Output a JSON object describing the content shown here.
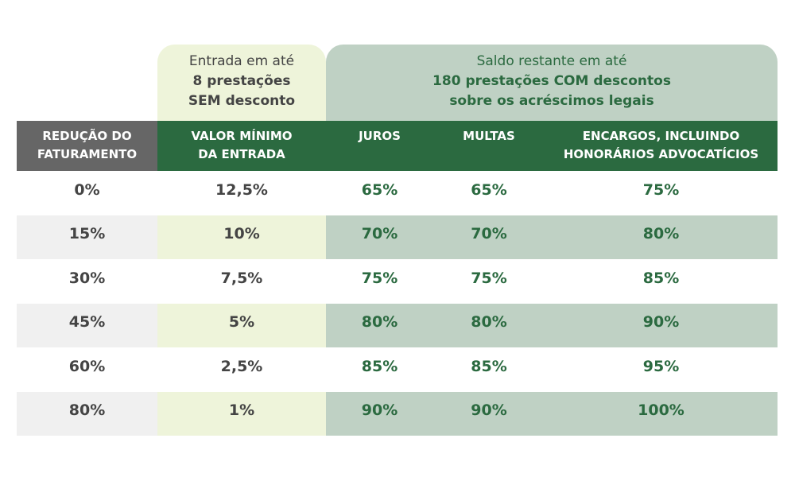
{
  "header_entrada": {
    "line1": "Entrada em até",
    "line2": "8 prestações",
    "line3": "SEM desconto"
  },
  "header_saldo": {
    "line1": "Saldo restante em até",
    "line2": "180 prestações COM descontos",
    "line3": "sobre os acréscimos legais"
  },
  "columns": [
    {
      "line1": "REDUÇÃO DO",
      "line2": "FATURAMENTO"
    },
    {
      "line1": "VALOR MÍNIMO",
      "line2": "DA ENTRADA"
    },
    {
      "line1": "JUROS",
      "line2": ""
    },
    {
      "line1": "MULTAS",
      "line2": ""
    },
    {
      "line1": "ENCARGOS, INCLUINDO",
      "line2": "HONORÁRIOS ADVOCATÍCIOS"
    }
  ],
  "rows": [
    [
      "0%",
      "12,5%",
      "65%",
      "65%",
      "75%"
    ],
    [
      "15%",
      "10%",
      "70%",
      "70%",
      "80%"
    ],
    [
      "30%",
      "7,5%",
      "75%",
      "75%",
      "85%"
    ],
    [
      "45%",
      "5%",
      "80%",
      "80%",
      "90%"
    ],
    [
      "60%",
      "2,5%",
      "85%",
      "85%",
      "95%"
    ],
    [
      "80%",
      "1%",
      "90%",
      "90%",
      "100%"
    ]
  ],
  "colors": {
    "dark_green": "#2b6a40",
    "sage": "#bfd1c4",
    "light_yellow": "#eef4da",
    "gray_header": "#666666",
    "gray_row": "#f0f0f0"
  }
}
